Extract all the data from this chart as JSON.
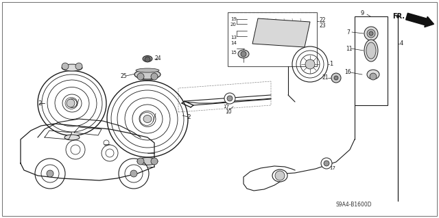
{
  "background_color": "#ffffff",
  "line_color": "#1a1a1a",
  "fig_width": 6.4,
  "fig_height": 3.19,
  "dpi": 100,
  "diagram_code": "S9A4-B1600D"
}
